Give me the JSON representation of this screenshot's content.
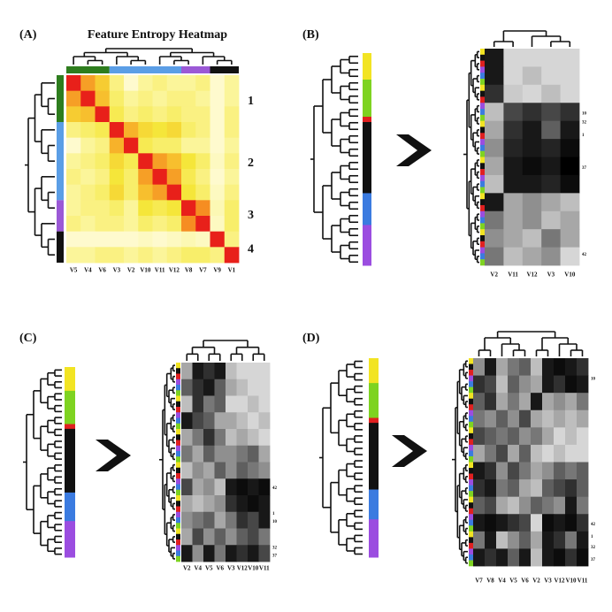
{
  "panels": [
    {
      "label": "(A)",
      "title": "Feature Entropy Heatmap",
      "columns": [
        "V5",
        "V4",
        "V6",
        "V3",
        "V2",
        "V10",
        "V11",
        "V12",
        "V8",
        "V7",
        "V9",
        "V1"
      ],
      "cluster_labels": [
        "1",
        "2",
        "3",
        "4"
      ],
      "matrix": [
        [
          1,
          0.75,
          0.6,
          0.35,
          0.1,
          0.3,
          0.35,
          0.3,
          0.3,
          0.35,
          0.1,
          0.3
        ],
        [
          0.75,
          1,
          0.65,
          0.4,
          0.3,
          0.35,
          0.3,
          0.35,
          0.35,
          0.3,
          0.1,
          0.3
        ],
        [
          0.6,
          0.65,
          1,
          0.45,
          0.35,
          0.4,
          0.35,
          0.4,
          0.35,
          0.35,
          0.1,
          0.35
        ],
        [
          0.35,
          0.4,
          0.45,
          1,
          0.7,
          0.55,
          0.5,
          0.55,
          0.4,
          0.35,
          0.1,
          0.35
        ],
        [
          0.1,
          0.3,
          0.35,
          0.7,
          1,
          0.45,
          0.4,
          0.4,
          0.3,
          0.3,
          0.1,
          0.3
        ],
        [
          0.3,
          0.35,
          0.4,
          0.55,
          0.45,
          1,
          0.75,
          0.65,
          0.5,
          0.4,
          0.15,
          0.35
        ],
        [
          0.35,
          0.3,
          0.35,
          0.5,
          0.4,
          0.75,
          1,
          0.75,
          0.45,
          0.35,
          0.1,
          0.3
        ],
        [
          0.3,
          0.35,
          0.4,
          0.55,
          0.4,
          0.65,
          0.75,
          1,
          0.5,
          0.4,
          0.15,
          0.35
        ],
        [
          0.3,
          0.35,
          0.35,
          0.4,
          0.3,
          0.5,
          0.45,
          0.5,
          1,
          0.8,
          0.2,
          0.4
        ],
        [
          0.35,
          0.3,
          0.35,
          0.35,
          0.3,
          0.4,
          0.35,
          0.4,
          0.8,
          1,
          0.15,
          0.4
        ],
        [
          0.1,
          0.1,
          0.1,
          0.1,
          0.1,
          0.15,
          0.1,
          0.15,
          0.2,
          0.15,
          1,
          0.35
        ],
        [
          0.3,
          0.3,
          0.35,
          0.35,
          0.3,
          0.35,
          0.3,
          0.35,
          0.4,
          0.4,
          0.35,
          1
        ]
      ]
    },
    {
      "label": "(B)",
      "columns": [
        "V2",
        "V11",
        "V12",
        "V3",
        "V10"
      ],
      "row_labels": [
        "10",
        "32",
        "1",
        "37",
        "42"
      ],
      "matrix": [
        [
          0.9,
          0.1,
          0.1,
          0.1,
          0.1
        ],
        [
          0.9,
          0.1,
          0.2,
          0.1,
          0.1
        ],
        [
          0.8,
          0.15,
          0.1,
          0.2,
          0.1
        ],
        [
          0.2,
          0.7,
          0.8,
          0.7,
          0.8
        ],
        [
          0.3,
          0.8,
          0.9,
          0.6,
          0.9
        ],
        [
          0.4,
          0.85,
          0.9,
          0.85,
          0.95
        ],
        [
          0.3,
          0.9,
          0.95,
          0.9,
          1
        ],
        [
          0.2,
          0.9,
          0.9,
          0.85,
          0.95
        ],
        [
          0.9,
          0.3,
          0.4,
          0.3,
          0.2
        ],
        [
          0.5,
          0.3,
          0.4,
          0.2,
          0.3
        ],
        [
          0.4,
          0.3,
          0.2,
          0.5,
          0.3
        ],
        [
          0.5,
          0.2,
          0.3,
          0.4,
          0.1
        ]
      ]
    },
    {
      "label": "(C)",
      "columns": [
        "V2",
        "V4",
        "V5",
        "V6",
        "V3",
        "V12",
        "V10",
        "V11"
      ],
      "row_labels": [
        "42",
        "1",
        "10",
        "32",
        "37"
      ],
      "matrix": [
        [
          0.3,
          0.9,
          0.8,
          0.9,
          0.2,
          0.1,
          0.1,
          0.1
        ],
        [
          0.6,
          0.8,
          0.9,
          0.6,
          0.3,
          0.2,
          0.1,
          0.1
        ],
        [
          0.2,
          0.8,
          0.5,
          0.6,
          0.1,
          0.1,
          0.2,
          0.1
        ],
        [
          0.9,
          0.7,
          0.6,
          0.3,
          0.3,
          0.2,
          0.1,
          0.2
        ],
        [
          0.3,
          0.5,
          0.8,
          0.5,
          0.2,
          0.3,
          0.2,
          0.1
        ],
        [
          0.5,
          0.3,
          0.6,
          0.4,
          0.4,
          0.5,
          0.6,
          0.3
        ],
        [
          0.2,
          0.4,
          0.3,
          0.6,
          0.4,
          0.6,
          0.5,
          0.4
        ],
        [
          0.7,
          0.3,
          0.4,
          0.2,
          0.9,
          0.95,
          0.9,
          0.95
        ],
        [
          0.3,
          0.2,
          0.3,
          0.4,
          0.8,
          0.9,
          0.95,
          0.9
        ],
        [
          0.4,
          0.5,
          0.6,
          0.3,
          0.5,
          0.8,
          0.7,
          0.9
        ],
        [
          0.3,
          0.7,
          0.4,
          0.6,
          0.4,
          0.6,
          0.7,
          0.5
        ],
        [
          0.9,
          0.4,
          0.9,
          0.5,
          0.9,
          0.8,
          0.9,
          0.7
        ]
      ]
    },
    {
      "label": "(D)",
      "columns": [
        "V7",
        "V8",
        "V4",
        "V5",
        "V6",
        "V2",
        "V3",
        "V12",
        "V10",
        "V11"
      ],
      "row_labels": [
        "10",
        "42",
        "1",
        "32",
        "37"
      ],
      "matrix": [
        [
          0.4,
          0.9,
          0.3,
          0.5,
          0.6,
          0.2,
          0.9,
          0.95,
          0.9,
          0.8
        ],
        [
          0.8,
          0.7,
          0.2,
          0.6,
          0.4,
          0.3,
          0.9,
          0.8,
          0.95,
          0.9
        ],
        [
          0.6,
          0.8,
          0.3,
          0.5,
          0.3,
          0.9,
          0.3,
          0.4,
          0.3,
          0.5
        ],
        [
          0.5,
          0.4,
          0.6,
          0.4,
          0.7,
          0.3,
          0.2,
          0.3,
          0.2,
          0.3
        ],
        [
          0.7,
          0.6,
          0.5,
          0.6,
          0.4,
          0.5,
          0.3,
          0.1,
          0.2,
          0.1
        ],
        [
          0.3,
          0.5,
          0.7,
          0.3,
          0.6,
          0.2,
          0.1,
          0.2,
          0.1,
          0.1
        ],
        [
          0.9,
          0.8,
          0.4,
          0.7,
          0.5,
          0.3,
          0.4,
          0.6,
          0.5,
          0.6
        ],
        [
          0.8,
          0.9,
          0.5,
          0.6,
          0.3,
          0.2,
          0.6,
          0.7,
          0.8,
          0.6
        ],
        [
          0.6,
          0.7,
          0.3,
          0.2,
          0.4,
          0.6,
          0.5,
          0.4,
          0.9,
          0.5
        ],
        [
          0.9,
          0.95,
          0.9,
          0.8,
          0.7,
          0.1,
          0.95,
          0.9,
          0.95,
          0.8
        ],
        [
          0.5,
          0.9,
          0.2,
          0.4,
          0.6,
          0.3,
          0.9,
          0.8,
          0.5,
          0.9
        ],
        [
          0.9,
          0.8,
          0.9,
          0.6,
          0.9,
          0.2,
          0.9,
          0.95,
          0.8,
          0.95
        ]
      ]
    }
  ]
}
